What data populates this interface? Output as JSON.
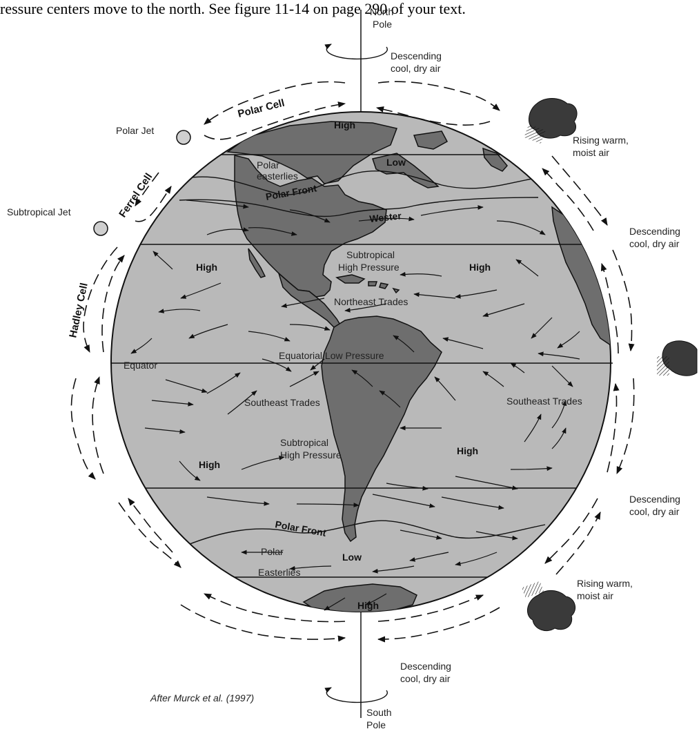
{
  "header_text": "ressure centers move to the north. See figure 11-14 on page 290 of your text.",
  "poles": {
    "north_line1": "North",
    "north_line2": "Pole",
    "south_line1": "South",
    "south_line2": "Pole"
  },
  "jets": {
    "polar": "Polar Jet",
    "subtropical": "Subtropical Jet"
  },
  "cells": {
    "polar": "Polar Cell",
    "ferrel": "Ferrel Cell",
    "hadley": "Hadley Cell"
  },
  "right_labels": {
    "desc1_l1": "Descending",
    "desc1_l2": "cool, dry air",
    "rise1_l1": "Rising warm,",
    "rise1_l2": "moist air",
    "desc2_l1": "Descending",
    "desc2_l2": "cool, dry air",
    "desc3_l1": "Descending",
    "desc3_l2": "cool, dry air",
    "rise2_l1": "Rising warm,",
    "rise2_l2": "moist air",
    "desc4_l1": "Descending",
    "desc4_l2": "cool, dry air"
  },
  "globe_labels": {
    "high_np": "High",
    "low_n": "Low",
    "polar_easterlies_n_l1": "Polar",
    "polar_easterlies_n_l2": "easterlies",
    "polar_front_n": "Polar Front",
    "westerlies": "Wester",
    "subtropical_high_n_l1": "Subtropical",
    "subtropical_high_n_l2": "High Pressure",
    "high_nw": "High",
    "high_ne": "High",
    "northeast_trades": "Northeast Trades",
    "equator": "Equator",
    "equatorial_low": "Equatorial Low Pressure",
    "southeast_trades_w": "Southeast Trades",
    "southeast_trades_e": "Southeast Trades",
    "subtropical_high_s_l1": "Subtropical",
    "subtropical_high_s_l2": "High Pressure",
    "high_sw": "High",
    "high_se": "High",
    "polar_front_s": "Polar Front",
    "polar_easterlies_s_l1": "Polar",
    "polar_easterlies_s_l2": "Easterlies",
    "low_s": "Low",
    "high_sp": "High"
  },
  "credit": "After Murck et al. (1997)",
  "colors": {
    "ocean": "#b9b9b9",
    "land": "#6e6e6e",
    "line": "#111111",
    "cloud": "#3a3a3a"
  }
}
